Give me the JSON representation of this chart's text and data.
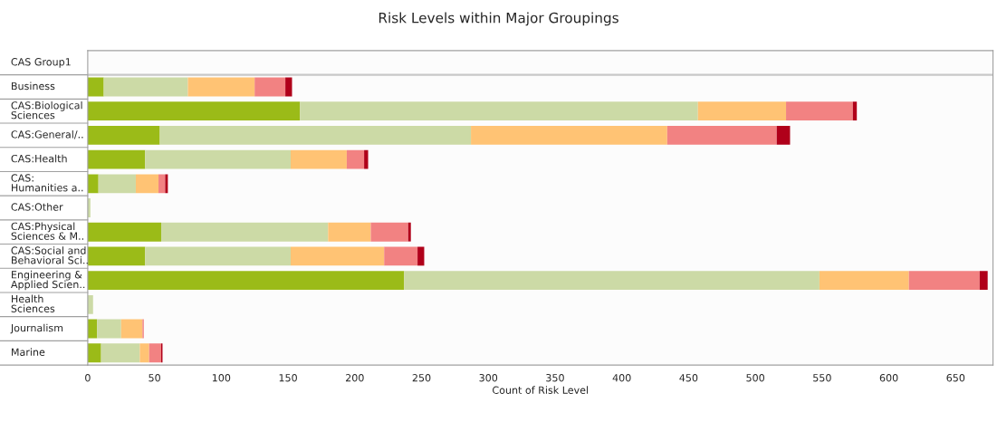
{
  "chart_data": {
    "type": "bar",
    "orientation": "horizontal",
    "stacked": true,
    "title": "Risk Levels within Major Groupings",
    "xlabel": "Count of Risk Level",
    "ylabel": "CAS Group1",
    "categories": [
      "Business",
      "CAS:Biological\nSciences",
      "CAS:General/..",
      "CAS:Health",
      "CAS:\nHumanities a..",
      "CAS:Other",
      "CAS:Physical\nSciences & M..",
      "CAS:Social and\nBehavioral Sci..",
      "Engineering &\nApplied Scien..",
      "Health\nSciences",
      "Journalism",
      "Marine"
    ],
    "series": [
      {
        "color": "#9bbb18",
        "values": [
          12,
          159,
          54,
          43,
          8,
          null,
          55,
          43,
          237,
          null,
          7,
          10
        ]
      },
      {
        "color": "#ccdaa6",
        "values": [
          63,
          298,
          233,
          109,
          28,
          2,
          125,
          109,
          311,
          4,
          18,
          29
        ]
      },
      {
        "color": "#ffc374",
        "values": [
          50,
          66,
          147,
          42,
          17,
          null,
          32,
          70,
          67,
          null,
          16,
          7
        ]
      },
      {
        "color": "#f28282",
        "values": [
          23,
          50,
          82,
          13,
          5,
          null,
          28,
          25,
          53,
          null,
          1,
          9
        ]
      },
      {
        "color": "#b0001a",
        "values": [
          5,
          3,
          10,
          3,
          2,
          null,
          2,
          5,
          6,
          null,
          null,
          1
        ]
      }
    ],
    "xlim": [
      0,
      678
    ],
    "xticks": [
      0,
      50,
      100,
      150,
      200,
      250,
      300,
      350,
      400,
      450,
      500,
      550,
      600,
      650
    ],
    "grid": false,
    "legend": false
  }
}
